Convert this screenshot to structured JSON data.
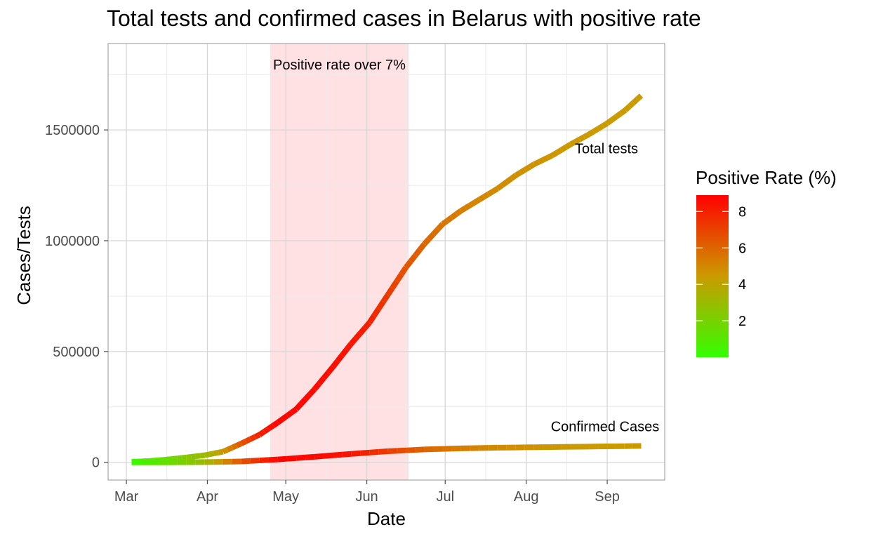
{
  "chart_data": {
    "type": "line",
    "title": "Total tests and confirmed cases in Belarus with positive rate",
    "xlabel": "Date",
    "ylabel": "Cases/Tests",
    "x_ticks": [
      "Mar",
      "Apr",
      "May",
      "Jun",
      "Jul",
      "Aug",
      "Sep"
    ],
    "x_tick_dates": [
      "2020-03-01",
      "2020-04-01",
      "2020-05-01",
      "2020-06-01",
      "2020-07-01",
      "2020-08-01",
      "2020-09-01"
    ],
    "xlim": [
      "2020-02-23",
      "2020-09-23"
    ],
    "y_ticks": [
      0,
      500000,
      1000000,
      1500000
    ],
    "y_tick_labels": [
      "0",
      "500000",
      "1000000",
      "1500000"
    ],
    "ylim": [
      -80000,
      1890000
    ],
    "grid": true,
    "shaded_region": {
      "start": "2020-04-25",
      "end": "2020-06-17",
      "label": "Positive rate over 7%",
      "color": "#ffe1e4"
    },
    "color_scale": {
      "title": "Positive Rate (%)",
      "low": {
        "value": 0,
        "color": "#33ff00"
      },
      "mid": {
        "value": 4.5,
        "color": "#cc9900"
      },
      "high": {
        "value": 8.9,
        "color": "#ff0000"
      },
      "ticks": [
        2,
        4,
        6,
        8
      ],
      "tick_labels": [
        "2",
        "4",
        "6",
        "8"
      ],
      "range": [
        0,
        8.9
      ]
    },
    "series": [
      {
        "name": "Total tests",
        "x": [
          "2020-03-03",
          "2020-03-10",
          "2020-03-17",
          "2020-03-24",
          "2020-03-31",
          "2020-04-07",
          "2020-04-14",
          "2020-04-21",
          "2020-04-28",
          "2020-05-05",
          "2020-05-12",
          "2020-05-19",
          "2020-05-26",
          "2020-06-02",
          "2020-06-09",
          "2020-06-16",
          "2020-06-23",
          "2020-06-30",
          "2020-07-07",
          "2020-07-14",
          "2020-07-21",
          "2020-07-28",
          "2020-08-04",
          "2020-08-11",
          "2020-08-18",
          "2020-08-25",
          "2020-09-01",
          "2020-09-08",
          "2020-09-14"
        ],
        "y": [
          2000,
          6000,
          13000,
          22000,
          32000,
          48000,
          85000,
          125000,
          180000,
          240000,
          330000,
          430000,
          535000,
          630000,
          755000,
          880000,
          985000,
          1075000,
          1135000,
          1185000,
          1235000,
          1295000,
          1345000,
          1385000,
          1435000,
          1480000,
          1530000,
          1590000,
          1655000
        ],
        "positive_rate": [
          0.2,
          1.0,
          1.5,
          2.5,
          3.0,
          4.5,
          6.5,
          8.0,
          8.8,
          8.7,
          8.6,
          8.5,
          8.3,
          8.0,
          7.2,
          6.5,
          6.0,
          5.6,
          5.3,
          5.1,
          4.9,
          4.8,
          4.7,
          4.6,
          4.5,
          4.5,
          4.4,
          4.4,
          4.4
        ]
      },
      {
        "name": "Confirmed Cases",
        "x": [
          "2020-03-03",
          "2020-03-17",
          "2020-03-31",
          "2020-04-14",
          "2020-04-28",
          "2020-05-12",
          "2020-05-26",
          "2020-06-09",
          "2020-06-23",
          "2020-07-07",
          "2020-07-21",
          "2020-08-04",
          "2020-08-18",
          "2020-09-01",
          "2020-09-14"
        ],
        "y": [
          0,
          100,
          1000,
          4000,
          13000,
          25000,
          38000,
          50000,
          58000,
          63000,
          66000,
          68000,
          70000,
          72000,
          74000
        ],
        "positive_rate": [
          0.2,
          1.5,
          3.0,
          6.5,
          8.8,
          8.6,
          8.3,
          7.2,
          6.0,
          5.3,
          4.9,
          4.7,
          4.5,
          4.4,
          4.4
        ]
      }
    ],
    "annotations": [
      {
        "text": "Total tests",
        "x": "2020-09-01",
        "y": 1395000
      },
      {
        "text": "Confirmed Cases",
        "x": "2020-09-01",
        "y": 140000
      }
    ]
  }
}
